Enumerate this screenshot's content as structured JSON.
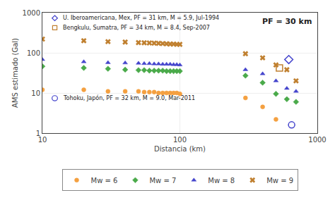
{
  "chart_data": {
    "type": "scatter",
    "xlabel": "Distancia (km)",
    "ylabel": "AMS estimado (Gal)",
    "log": true,
    "xlim": [
      10,
      1000
    ],
    "ylim": [
      1,
      1000
    ],
    "xticks": [
      10,
      100,
      1000
    ],
    "yticks": [
      1,
      10,
      100,
      1000
    ],
    "grid": true,
    "legend": "bottom",
    "series": [
      {
        "name": "Mw = 6",
        "color": "#f4a040",
        "marker": "circle",
        "x": [
          10,
          20,
          30,
          40,
          50,
          55,
          60,
          65,
          70,
          75,
          80,
          85,
          90,
          95,
          100,
          300,
          400,
          500
        ],
        "values": [
          12,
          12,
          11,
          11,
          11,
          10.5,
          10.5,
          10.5,
          10,
          10,
          10,
          10,
          10,
          10,
          9.5,
          7.5,
          4.5,
          2.2
        ]
      },
      {
        "name": "Mw = 7",
        "color": "#4aaa4a",
        "marker": "diamond",
        "x": [
          10,
          20,
          30,
          40,
          50,
          55,
          60,
          65,
          70,
          75,
          80,
          85,
          90,
          95,
          100,
          300,
          400,
          500,
          600,
          700
        ],
        "values": [
          46,
          42,
          40,
          38,
          37,
          37,
          36,
          36,
          36,
          36,
          35,
          35,
          35,
          35,
          35,
          27,
          18,
          9.5,
          7,
          6
        ]
      },
      {
        "name": "Mw = 8",
        "color": "#4444cc",
        "marker": "triangle-up",
        "x": [
          10,
          20,
          30,
          40,
          50,
          55,
          60,
          65,
          70,
          75,
          80,
          85,
          90,
          95,
          100,
          300,
          400,
          500,
          600,
          700
        ],
        "values": [
          68,
          60,
          57,
          56,
          55,
          54,
          54,
          53,
          53,
          52,
          52,
          52,
          51,
          51,
          50,
          38,
          30,
          20,
          13,
          11
        ]
      },
      {
        "name": "Mw = 9",
        "color": "#c08030",
        "marker": "x",
        "x": [
          10,
          20,
          30,
          40,
          50,
          55,
          60,
          65,
          70,
          75,
          80,
          85,
          90,
          95,
          100,
          300,
          400,
          500,
          600,
          700
        ],
        "values": [
          220,
          200,
          190,
          185,
          180,
          178,
          176,
          174,
          172,
          170,
          168,
          166,
          165,
          163,
          162,
          95,
          75,
          50,
          38,
          20
        ]
      }
    ],
    "annotations": [
      {
        "text": "PF = 30 km"
      },
      {
        "text": "U. Iberoamericana, Mex, PF = 31 km, M = 5.9, Jul-1994",
        "marker": "diamond-open",
        "color": "#4444cc",
        "x": [
          620
        ],
        "values": [
          68
        ]
      },
      {
        "text": "Bengkulu, Sumatra, PF = 34 km, M = 8.4, Sep-2007",
        "marker": "square-open",
        "color": "#c08030",
        "x": [
          530
        ],
        "values": [
          42
        ]
      },
      {
        "text": "Tohoku, Japón, PF = 32 km, M = 9.0, Mar-2011",
        "marker": "circle-open",
        "color": "#4444cc",
        "x": [
          650
        ],
        "values": [
          1.6
        ]
      }
    ]
  }
}
